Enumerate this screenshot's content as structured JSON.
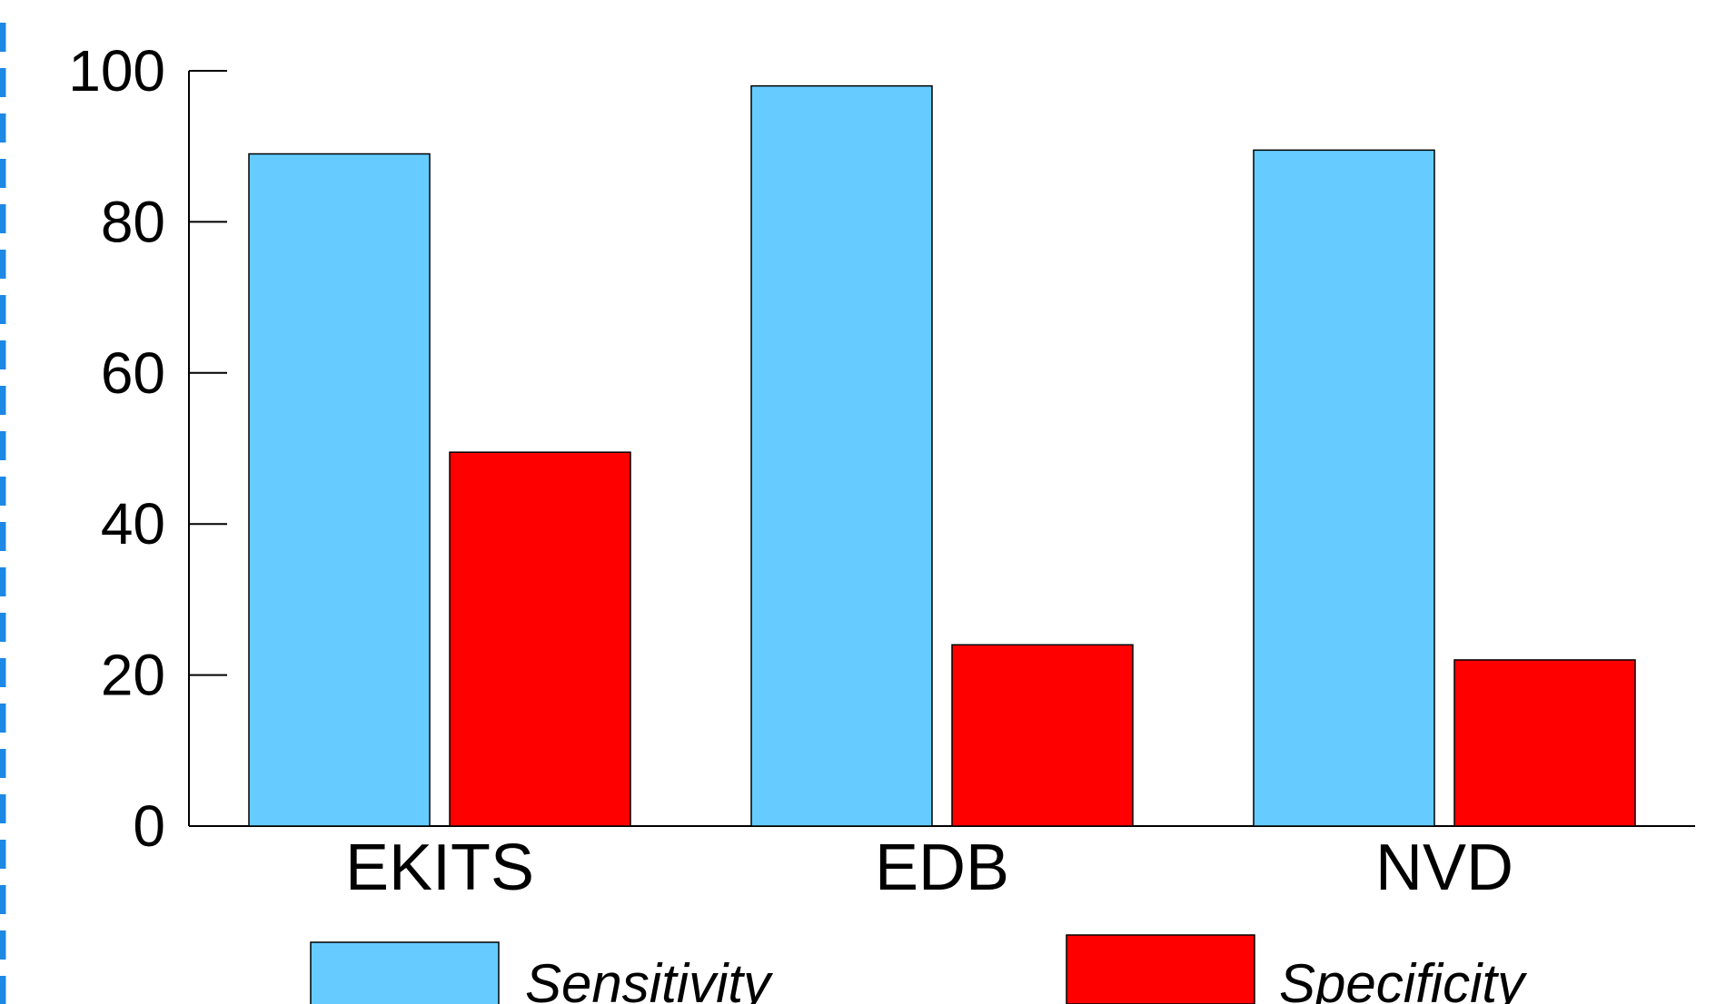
{
  "chart_data": {
    "type": "bar",
    "categories": [
      "EKITS",
      "EDB",
      "NVD"
    ],
    "series": [
      {
        "name": "Sensitivity",
        "color": "#66CCFF",
        "values": [
          89,
          98,
          89.5
        ]
      },
      {
        "name": "Specificity",
        "color": "#FF0000",
        "values": [
          49.5,
          24,
          22
        ]
      }
    ],
    "title": "",
    "xlabel": "",
    "ylabel": "",
    "ylim": [
      0,
      100
    ],
    "yticks": [
      "0",
      "20",
      "40",
      "60",
      "80",
      "100"
    ],
    "grid": false,
    "legend": "bottom"
  },
  "decor": {
    "left_dashed_line_color": "#1E88E5"
  }
}
